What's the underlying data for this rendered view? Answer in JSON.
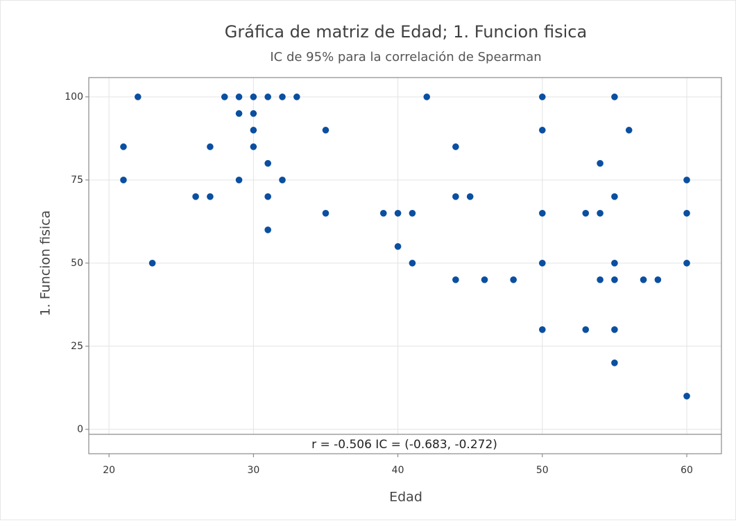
{
  "chart_data": {
    "type": "scatter",
    "title": "Gráfica de matriz de Edad; 1. Funcion fisica",
    "subtitle": "IC de 95% para la correlación de Spearman",
    "x_label": "Edad",
    "y_label": "1. Funcion fisica",
    "annotation": "r = -0.506  IC = (-0.683, -0.272)",
    "color": "#0a4fa0",
    "grid": true,
    "xlim": [
      18.6,
      62.4
    ],
    "ylim": [
      -1.5,
      105.8
    ],
    "xticks": [
      20,
      30,
      40,
      50,
      60
    ],
    "yticks": [
      0,
      25,
      50,
      75,
      100
    ],
    "x": [
      21,
      21,
      22,
      23,
      26,
      27,
      27,
      28,
      29,
      29,
      29,
      30,
      30,
      30,
      30,
      31,
      31,
      31,
      31,
      32,
      32,
      33,
      35,
      35,
      39,
      40,
      40,
      41,
      41,
      42,
      44,
      44,
      44,
      45,
      46,
      48,
      50,
      50,
      50,
      50,
      50,
      53,
      53,
      54,
      54,
      54,
      55,
      55,
      55,
      55,
      55,
      55,
      56,
      57,
      58,
      60,
      60,
      60,
      60
    ],
    "values": [
      85,
      75,
      100,
      50,
      70,
      85,
      70,
      100,
      100,
      95,
      75,
      100,
      95,
      90,
      85,
      100,
      80,
      70,
      60,
      100,
      75,
      100,
      90,
      65,
      65,
      65,
      55,
      65,
      50,
      100,
      85,
      70,
      45,
      70,
      45,
      45,
      100,
      90,
      65,
      50,
      30,
      65,
      30,
      80,
      65,
      45,
      100,
      70,
      50,
      45,
      30,
      20,
      90,
      45,
      45,
      75,
      65,
      50,
      10
    ]
  }
}
